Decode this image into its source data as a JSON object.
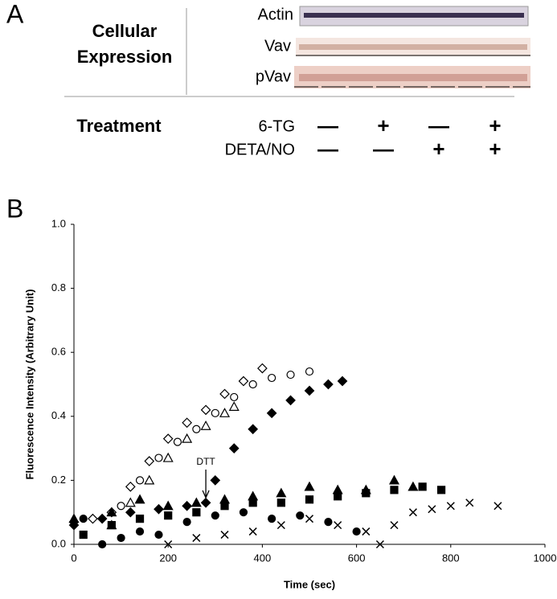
{
  "panel_a": {
    "label": "A",
    "title_lines": [
      "Cellular",
      "Expression"
    ],
    "blots": [
      "Actin",
      "Vav",
      "pVav"
    ],
    "treatment": {
      "title": "Treatment",
      "rows": [
        {
          "name": "6-TG",
          "signs": [
            "—",
            "+",
            "—",
            "+"
          ]
        },
        {
          "name": "DETA/NO",
          "signs": [
            "—",
            "—",
            "+",
            "+"
          ]
        }
      ]
    }
  },
  "chart_data": {
    "type": "scatter",
    "panel_label": "B",
    "x_label": "Time (sec)",
    "y_label": "Fluorescence Intensity (Arbitrary Unit)",
    "annotation": "DTT",
    "annotation_x": 280,
    "xlim": [
      0,
      1000
    ],
    "ylim": [
      0,
      1
    ],
    "xticks": [
      0,
      200,
      400,
      600,
      800,
      1000
    ],
    "yticks": [
      {
        "value": 0,
        "label": "0.0"
      },
      {
        "value": 0.2,
        "label": "0.2"
      },
      {
        "value": 0.4,
        "label": "0.4"
      },
      {
        "value": 0.6,
        "label": "0.6"
      },
      {
        "value": 0.8,
        "label": "0.8"
      },
      {
        "value": 1,
        "label": "1.0"
      }
    ],
    "series": [
      {
        "marker": "diamond-open",
        "color": "#000000",
        "x": [
          0,
          40,
          80,
          120,
          160,
          200,
          240,
          280,
          320,
          360,
          400
        ],
        "values": [
          0.07,
          0.08,
          0.1,
          0.18,
          0.26,
          0.33,
          0.38,
          0.42,
          0.47,
          0.51,
          0.55
        ]
      },
      {
        "marker": "circle-open",
        "color": "#000000",
        "x": [
          100,
          140,
          180,
          220,
          260,
          300,
          340,
          380,
          420,
          460,
          500
        ],
        "values": [
          0.12,
          0.2,
          0.27,
          0.32,
          0.36,
          0.41,
          0.46,
          0.5,
          0.52,
          0.53,
          0.54
        ]
      },
      {
        "marker": "triangle-open",
        "color": "#000000",
        "x": [
          80,
          120,
          160,
          200,
          240,
          280,
          320,
          340
        ],
        "values": [
          0.06,
          0.13,
          0.2,
          0.27,
          0.33,
          0.37,
          0.41,
          0.43
        ]
      },
      {
        "marker": "diamond",
        "color": "#000000",
        "x": [
          0,
          60,
          120,
          180,
          240,
          280,
          300,
          340,
          380,
          420,
          460,
          500,
          540,
          570
        ],
        "values": [
          0.06,
          0.08,
          0.1,
          0.11,
          0.12,
          0.13,
          0.2,
          0.3,
          0.36,
          0.41,
          0.45,
          0.48,
          0.5,
          0.51
        ]
      },
      {
        "marker": "triangle",
        "color": "#000000",
        "x": [
          0,
          80,
          140,
          200,
          260,
          320,
          380,
          440,
          500,
          560,
          620,
          680,
          720
        ],
        "values": [
          0.08,
          0.1,
          0.14,
          0.12,
          0.13,
          0.14,
          0.15,
          0.16,
          0.18,
          0.17,
          0.17,
          0.2,
          0.18
        ]
      },
      {
        "marker": "square",
        "color": "#000000",
        "x": [
          20,
          80,
          140,
          200,
          260,
          320,
          380,
          440,
          500,
          560,
          620,
          680,
          740,
          780
        ],
        "values": [
          0.03,
          0.06,
          0.08,
          0.09,
          0.1,
          0.12,
          0.13,
          0.13,
          0.14,
          0.15,
          0.16,
          0.17,
          0.18,
          0.17
        ]
      },
      {
        "marker": "circle",
        "color": "#000000",
        "x": [
          20,
          60,
          100,
          140,
          180,
          240,
          300,
          360,
          420,
          480,
          540,
          600
        ],
        "values": [
          0.08,
          0,
          0.02,
          0.04,
          0.03,
          0.07,
          0.09,
          0.1,
          0.08,
          0.09,
          0.07,
          0.04
        ]
      },
      {
        "marker": "x",
        "color": "#000000",
        "x": [
          200,
          260,
          320,
          380,
          440,
          500,
          560,
          620,
          650,
          680,
          720,
          760,
          800,
          840,
          900
        ],
        "values": [
          0,
          0.02,
          0.03,
          0.04,
          0.06,
          0.08,
          0.06,
          0.04,
          0,
          0.06,
          0.1,
          0.11,
          0.12,
          0.13,
          0.12
        ]
      }
    ]
  }
}
